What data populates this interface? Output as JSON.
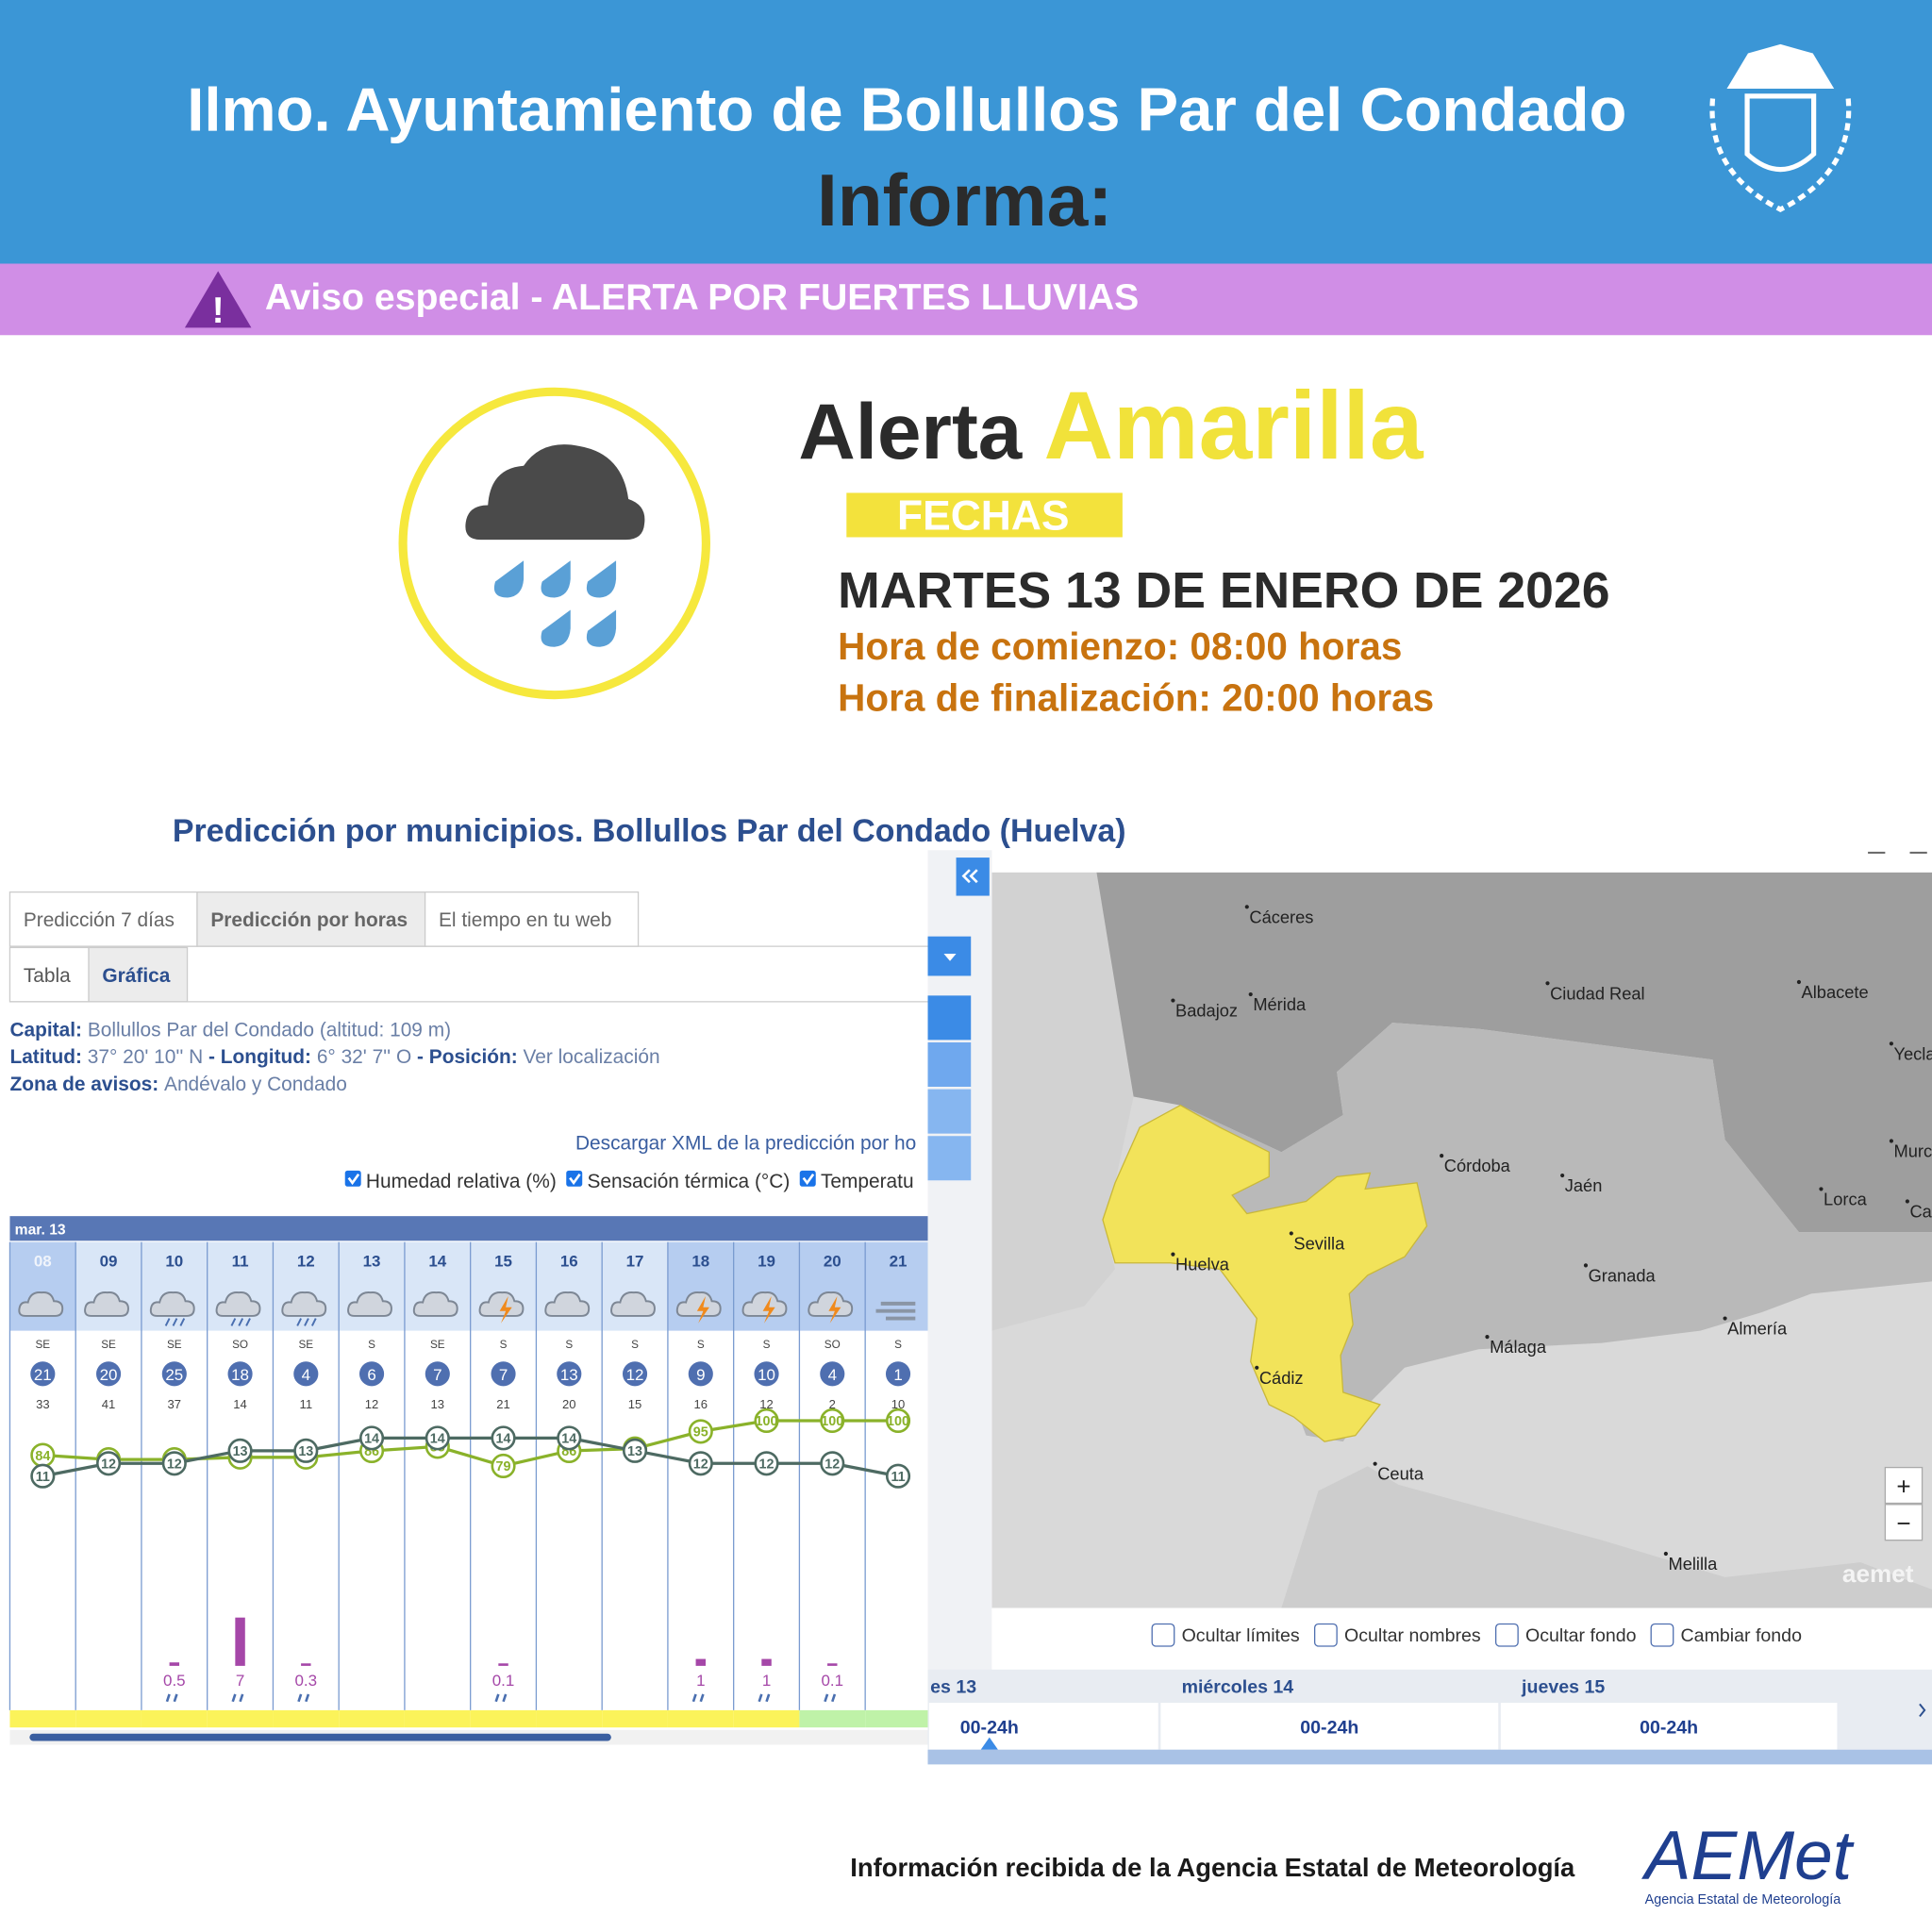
{
  "header": {
    "title": "Ilmo. Ayuntamiento de Bollullos Par del Condado",
    "subtitle": "Informa:"
  },
  "notice": "Aviso especial - ALERTA POR FUERTES LLUVIAS",
  "alert": {
    "label": "Alerta",
    "level": "Amarilla",
    "dates_label": "FECHAS",
    "date": "MARTES 13 DE ENERO DE 2026",
    "start": "Hora de comienzo: 08:00 horas",
    "end": "Hora de finalización: 20:00 horas"
  },
  "forecast": {
    "title": "Predicción por municipios. Bollullos Par del Condado (Huelva)",
    "tabs": [
      "Predicción 7 días",
      "Predicción por horas",
      "El tiempo en tu web"
    ],
    "subtabs": [
      "Tabla",
      "Gráfica"
    ],
    "info": [
      [
        "Capital:",
        "Bollullos Par del Condado (altitud: 109 m)"
      ],
      [
        "Latitud:",
        "37° 20' 10'' N",
        "- Longitud:",
        "6° 32' 7'' O",
        "- Posición:",
        "Ver localización"
      ],
      [
        "Zona de avisos:",
        "Andévalo y Condado"
      ]
    ],
    "download": "Descargar XML de la predicción por ho",
    "checks": [
      "Humedad relativa (%)",
      "Sensación térmica (°C)",
      "Temperatu"
    ],
    "day": "mar. 13",
    "hours": [
      "08",
      "09",
      "10",
      "11",
      "12",
      "13",
      "14",
      "15",
      "16",
      "17",
      "18",
      "19",
      "20",
      "21"
    ],
    "wind_dir": [
      "SE",
      "SE",
      "SE",
      "SO",
      "SE",
      "S",
      "SE",
      "S",
      "S",
      "S",
      "S",
      "S",
      "SO",
      "S"
    ],
    "wind_speed": [
      21,
      20,
      25,
      18,
      4,
      6,
      7,
      7,
      13,
      12,
      9,
      10,
      4,
      1
    ],
    "gusts": [
      33,
      41,
      37,
      14,
      11,
      12,
      13,
      21,
      20,
      15,
      16,
      12,
      2,
      10
    ],
    "humidity": [
      84,
      82,
      82,
      83,
      83,
      86,
      88,
      79,
      86,
      87,
      95,
      100,
      100,
      100
    ],
    "temperature": [
      11,
      12,
      12,
      13,
      13,
      14,
      14,
      14,
      14,
      13,
      12,
      12,
      12,
      11
    ],
    "precip": [
      null,
      null,
      0.5,
      7,
      0.3,
      null,
      null,
      0.1,
      null,
      null,
      1,
      1,
      0.1,
      null
    ]
  },
  "map": {
    "cities": [
      "Cáceres",
      "Badajoz",
      "Mérida",
      "Ciudad Real",
      "Albacete",
      "Yecla",
      "Murci",
      "Lorca",
      "Ca",
      "Córdoba",
      "Jaén",
      "Sevilla",
      "Huelva",
      "Granada",
      "Almería",
      "Málaga",
      "Cádiz",
      "Ceuta",
      "Melilla"
    ],
    "options": [
      "Ocultar límites",
      "Ocultar nombres",
      "Ocultar fondo",
      "Cambiar fondo"
    ],
    "days": [
      "es 13",
      "miércoles 14",
      "jueves 15"
    ],
    "period": "00-24h",
    "brand": "aemet"
  },
  "footer": {
    "text": "Información recibida de la Agencia Estatal de Meteorología",
    "logo": "AEMet",
    "logo_sub": "Agencia Estatal de Meteorología"
  }
}
